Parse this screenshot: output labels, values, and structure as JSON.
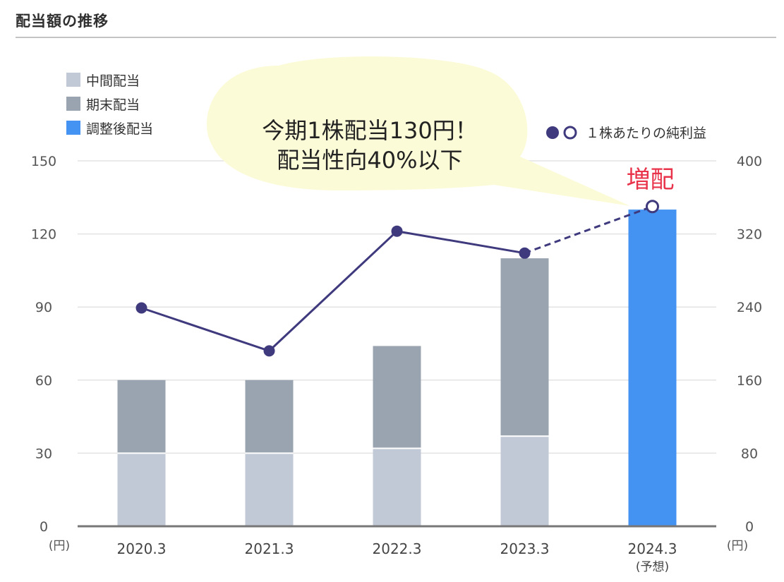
{
  "title": "配当額の推移",
  "chart_data": {
    "type": "bar",
    "stacked": true,
    "categories": [
      "2020.3",
      "2021.3",
      "2022.3",
      "2023.3",
      "2024.3"
    ],
    "category_sublabels": [
      "",
      "",
      "",
      "",
      "(予想)"
    ],
    "series": [
      {
        "name": "中間配当",
        "values": [
          30,
          30,
          32,
          37,
          0
        ],
        "color": "#c2c9d6"
      },
      {
        "name": "期末配当",
        "values": [
          30,
          30,
          42,
          73,
          0
        ],
        "color": "#9aa4b1"
      },
      {
        "name": "調整後配当",
        "values": [
          0,
          0,
          0,
          0,
          130
        ],
        "color": "#4493f2"
      }
    ],
    "line_series": {
      "name": "１株あたりの純利益",
      "axis": "right",
      "values": [
        239,
        192,
        323,
        299,
        350
      ],
      "color": "#3f3a7d",
      "forecast_from_index": 3
    },
    "y_left": {
      "min": 0,
      "max": 150,
      "ticks": [
        0,
        30,
        60,
        90,
        120,
        150
      ],
      "unit": "(円)"
    },
    "y_right": {
      "min": 0,
      "max": 400,
      "ticks": [
        0,
        80,
        160,
        240,
        320,
        400
      ],
      "unit": "(円)"
    },
    "grid": true,
    "legend_position": "top-left",
    "callout": {
      "lines": [
        "今期1株配当130円！",
        "配当性向40%以下"
      ]
    },
    "annotation": "増配"
  }
}
